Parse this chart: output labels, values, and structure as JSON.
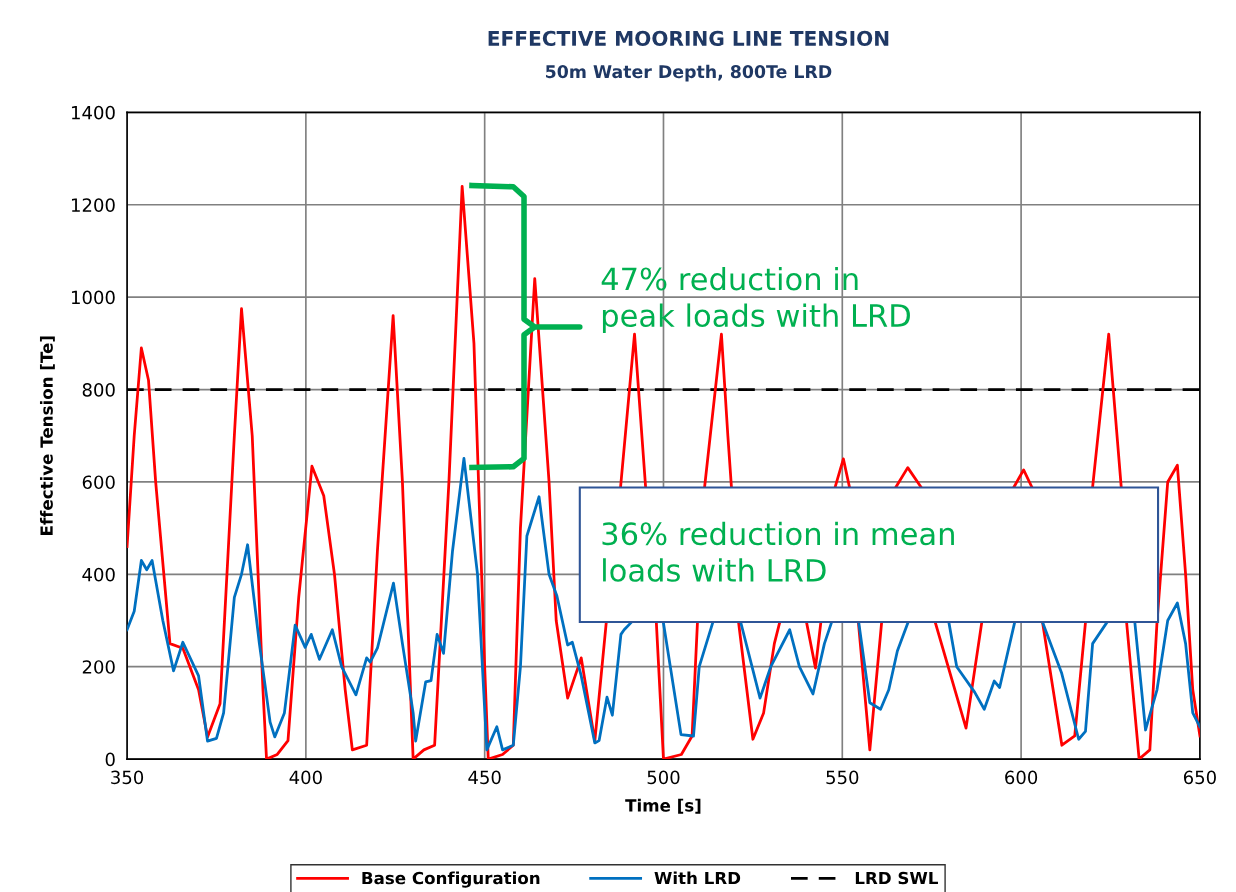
{
  "chart_data": {
    "type": "line",
    "title": "EFFECTIVE MOORING LINE TENSION",
    "subtitle": "50m Water Depth, 800Te LRD",
    "xlabel": "Time [s]",
    "ylabel": "Effective Tension [Te]",
    "xlim": [
      350,
      650
    ],
    "xticks": [
      350,
      400,
      450,
      500,
      550,
      600,
      650
    ],
    "ylim": [
      0,
      1400
    ],
    "yticks": [
      0,
      200,
      400,
      600,
      800,
      1000,
      1200,
      1400
    ],
    "grid": true,
    "legend": "bottom",
    "marker": "none",
    "line_style": "solid",
    "series": [
      {
        "name": "Base Configuration",
        "color": "#ff0000",
        "x": [
          350,
          352,
          354,
          356,
          358,
          362,
          365.6,
          370,
          372.5,
          376,
          380,
          382,
          385,
          388,
          389,
          392,
          395,
          398,
          401.7,
          405,
          408,
          411,
          413,
          417,
          420,
          424.4,
          427,
          430,
          433,
          436,
          440,
          443.7,
          447,
          450,
          451,
          455,
          458,
          460,
          464,
          468,
          470,
          473.2,
          477,
          480.8,
          484,
          486,
          488,
          491.9,
          495,
          496,
          498,
          500,
          505,
          508,
          509.5,
          510.5,
          511.5,
          516.2,
          518,
          519,
          520,
          521,
          525,
          528,
          531,
          532.5,
          536,
          540,
          542.5,
          544,
          546,
          548,
          550.3,
          552,
          553,
          554.5,
          557.7,
          561,
          563,
          565,
          568.3,
          572,
          574,
          576,
          584.6,
          589,
          592,
          598,
          600.7,
          603,
          604,
          606,
          611.4,
          615,
          618,
          619,
          620,
          624.5,
          628,
          629,
          629.5,
          633,
          636,
          638,
          641,
          643.7,
          646,
          648,
          650
        ],
        "values": [
          460,
          700,
          890,
          820,
          600,
          250,
          240,
          150,
          48,
          120,
          700,
          975,
          700,
          150,
          0,
          10,
          40,
          350,
          634,
          570,
          400,
          150,
          20,
          30,
          450,
          960,
          600,
          0,
          20,
          30,
          600,
          1240,
          900,
          200,
          0,
          10,
          30,
          500,
          1040,
          600,
          300,
          132,
          219,
          39,
          296,
          null,
          589,
          920,
          589,
          null,
          296,
          0,
          10,
          50,
          296,
          null,
          589,
          920,
          700,
          589,
          null,
          296,
          43,
          100,
          250,
          296,
          null,
          296,
          197,
          296,
          null,
          589,
          650,
          589,
          null,
          296,
          20,
          296,
          null,
          589,
          631,
          589,
          null,
          296,
          67,
          296,
          null,
          589,
          626,
          589,
          null,
          296,
          30,
          50,
          296,
          null,
          589,
          920,
          589,
          null,
          296,
          0,
          20,
          296,
          600,
          636,
          400,
          150,
          50
        ]
      },
      {
        "name": "With LRD",
        "color": "#0070c0",
        "x": [
          350,
          352,
          354,
          355.5,
          357,
          360,
          363,
          365.6,
          370,
          372.5,
          375,
          377,
          380,
          382,
          383.7,
          387,
          390,
          391.3,
          394,
          397,
          399.8,
          401.5,
          403.8,
          407.4,
          410,
          414,
          417,
          418,
          420,
          424.5,
          427,
          430,
          430.7,
          433.5,
          435,
          436.7,
          438.5,
          441,
          444.2,
          448,
          450.6,
          453.4,
          455,
          458,
          460,
          461.8,
          465.2,
          468,
          470.2,
          473.2,
          474.5,
          477,
          480.8,
          482,
          484.2,
          485.7,
          488.1,
          489,
          491,
          493,
          500,
          504.9,
          508.4,
          510,
          513.8,
          516,
          521.6,
          527,
          530,
          535.3,
          538,
          541.8,
          545,
          547,
          550,
          554.6,
          557.7,
          560.7,
          563,
          565.4,
          568.4,
          574,
          579.8,
          582,
          587,
          589.7,
          592.5,
          594,
          598.2,
          602,
          606,
          611.3,
          616.1,
          618,
          620,
          624,
          628,
          631.8,
          634.8,
          638,
          641,
          643.7,
          646,
          648,
          650
        ],
        "values": [
          280,
          320,
          430,
          410,
          430,
          300,
          191,
          253,
          180,
          39,
          45,
          100,
          350,
          400,
          464,
          250,
          80,
          48,
          100,
          290,
          242,
          270,
          216,
          280,
          200,
          139,
          219,
          210,
          240,
          381,
          250,
          100,
          39,
          167,
          170,
          270,
          229,
          450,
          651,
          400,
          20,
          70,
          20,
          30,
          200,
          483,
          568,
          400,
          353,
          247,
          253,
          180,
          35,
          40,
          134,
          95,
          270,
          280,
          296,
          null,
          294,
          53,
          50,
          200,
          296,
          null,
          296,
          132,
          200,
          280,
          200,
          141,
          250,
          296,
          null,
          296,
          122,
          108,
          150,
          234,
          296,
          null,
          296,
          200,
          145,
          108,
          169,
          155,
          296,
          null,
          296,
          187,
          43,
          60,
          250,
          296,
          null,
          296,
          63,
          150,
          300,
          338,
          250,
          100,
          70
        ]
      }
    ],
    "ref_lines": [
      {
        "axis": "y",
        "value": 800,
        "label": "LRD SWL",
        "color": "#000000",
        "line_style": "dashed"
      }
    ],
    "annotations": [
      "47% reduction in\npeak loads with LRD",
      "36% reduction in mean\nloads with LRD"
    ]
  }
}
